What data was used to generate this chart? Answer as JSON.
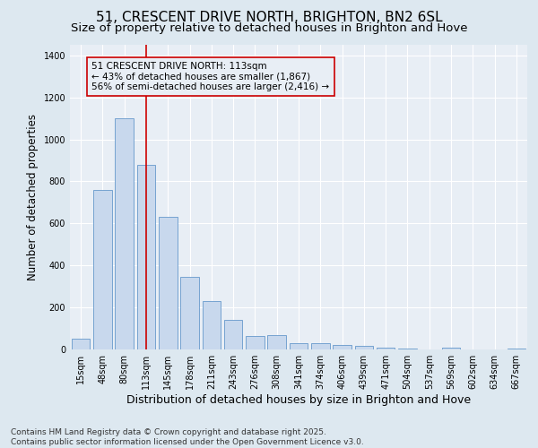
{
  "title": "51, CRESCENT DRIVE NORTH, BRIGHTON, BN2 6SL",
  "subtitle": "Size of property relative to detached houses in Brighton and Hove",
  "xlabel": "Distribution of detached houses by size in Brighton and Hove",
  "ylabel": "Number of detached properties",
  "categories": [
    "15sqm",
    "48sqm",
    "80sqm",
    "113sqm",
    "145sqm",
    "178sqm",
    "211sqm",
    "243sqm",
    "276sqm",
    "308sqm",
    "341sqm",
    "374sqm",
    "406sqm",
    "439sqm",
    "471sqm",
    "504sqm",
    "537sqm",
    "569sqm",
    "602sqm",
    "634sqm",
    "667sqm"
  ],
  "values": [
    50,
    760,
    1100,
    880,
    630,
    345,
    230,
    140,
    65,
    70,
    30,
    30,
    20,
    15,
    10,
    5,
    2,
    8,
    2,
    2,
    5
  ],
  "bar_color": "#c8d8ed",
  "bar_edge_color": "#6699cc",
  "vline_x_index": 3,
  "vline_color": "#cc0000",
  "annotation_text": "51 CRESCENT DRIVE NORTH: 113sqm\n← 43% of detached houses are smaller (1,867)\n56% of semi-detached houses are larger (2,416) →",
  "annotation_box_color": "#cc0000",
  "ylim": [
    0,
    1450
  ],
  "yticks": [
    0,
    200,
    400,
    600,
    800,
    1000,
    1200,
    1400
  ],
  "background_color": "#dde8f0",
  "plot_bg_color": "#e8eef5",
  "grid_color": "#ffffff",
  "footer": "Contains HM Land Registry data © Crown copyright and database right 2025.\nContains public sector information licensed under the Open Government Licence v3.0.",
  "title_fontsize": 11,
  "subtitle_fontsize": 9.5,
  "xlabel_fontsize": 9,
  "ylabel_fontsize": 8.5,
  "tick_fontsize": 7,
  "annotation_fontsize": 7.5,
  "footer_fontsize": 6.5
}
